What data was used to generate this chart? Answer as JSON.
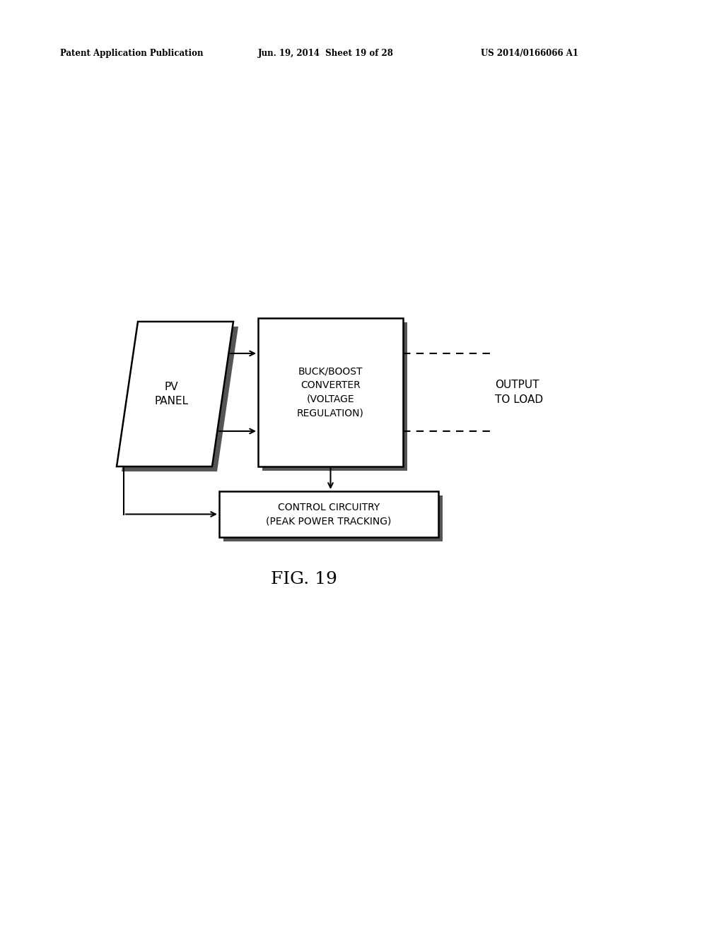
{
  "bg_color": "#ffffff",
  "header_left": "Patent Application Publication",
  "header_mid": "Jun. 19, 2014  Sheet 19 of 28",
  "header_right": "US 2014/0166066 A1",
  "fig_label": "FIG. 19",
  "pv_panel_label": "PV\nPANEL",
  "buck_boost_label": "BUCK/BOOST\nCONVERTER\n(VOLTAGE\nREGULATION)",
  "control_label": "CONTROL CIRCUITRY\n(PEAK POWER TRACKING)",
  "output_label": "OUTPUT\nTO LOAD"
}
